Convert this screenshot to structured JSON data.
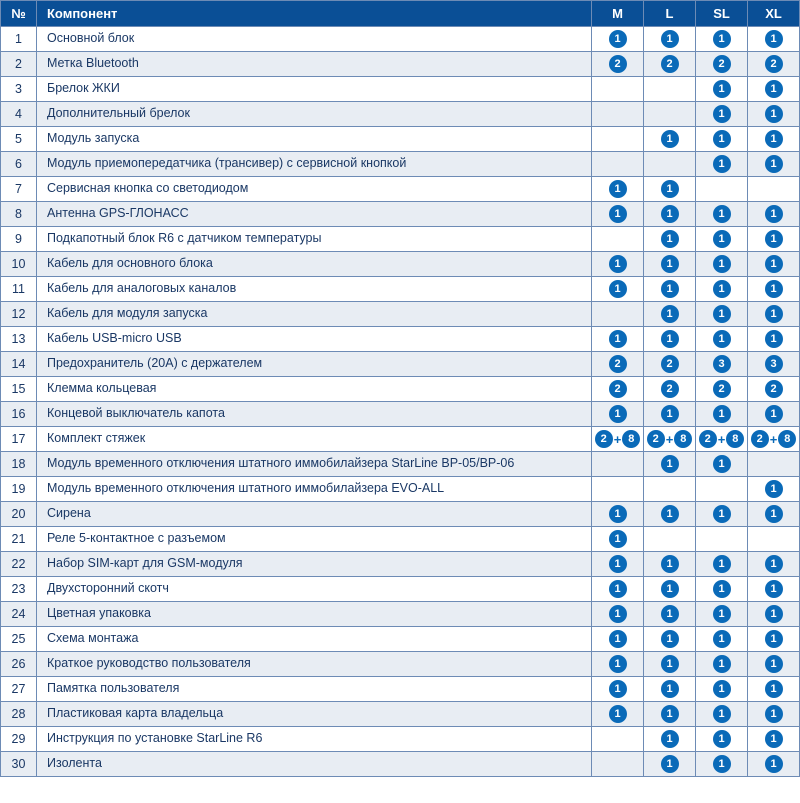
{
  "header": {
    "num": "№",
    "component": "Компонент",
    "cols": [
      "M",
      "L",
      "SL",
      "XL"
    ]
  },
  "colors": {
    "header_bg": "#0a4f96",
    "header_fg": "#ffffff",
    "border": "#6d8bb5",
    "text": "#1a3865",
    "badge_bg": "#0a6ab8",
    "row_even": "#e8edf3",
    "row_odd": "#ffffff"
  },
  "rows": [
    {
      "n": "1",
      "c": "Основной блок",
      "v": [
        "1",
        "1",
        "1",
        "1"
      ]
    },
    {
      "n": "2",
      "c": "Метка Bluetooth",
      "v": [
        "2",
        "2",
        "2",
        "2"
      ]
    },
    {
      "n": "3",
      "c": "Брелок ЖКИ",
      "v": [
        "",
        "",
        "1",
        "1"
      ]
    },
    {
      "n": "4",
      "c": "Дополнительный брелок",
      "v": [
        "",
        "",
        "1",
        "1"
      ]
    },
    {
      "n": "5",
      "c": "Модуль запуска",
      "v": [
        "",
        "1",
        "1",
        "1"
      ]
    },
    {
      "n": "6",
      "c": "Модуль приемопередатчика (трансивер) с сервисной кнопкой",
      "v": [
        "",
        "",
        "1",
        "1"
      ]
    },
    {
      "n": "7",
      "c": "Сервисная кнопка со светодиодом",
      "v": [
        "1",
        "1",
        "",
        ""
      ]
    },
    {
      "n": "8",
      "c": "Антенна GPS-ГЛОНАСС",
      "v": [
        "1",
        "1",
        "1",
        "1"
      ]
    },
    {
      "n": "9",
      "c": "Подкапотный блок R6 с датчиком температуры",
      "v": [
        "",
        "1",
        "1",
        "1"
      ]
    },
    {
      "n": "10",
      "c": "Кабель для основного блока",
      "v": [
        "1",
        "1",
        "1",
        "1"
      ]
    },
    {
      "n": "11",
      "c": "Кабель для аналоговых каналов",
      "v": [
        "1",
        "1",
        "1",
        "1"
      ]
    },
    {
      "n": "12",
      "c": "Кабель для модуля запуска",
      "v": [
        "",
        "1",
        "1",
        "1"
      ]
    },
    {
      "n": "13",
      "c": "Кабель USB-micro USB",
      "v": [
        "1",
        "1",
        "1",
        "1"
      ]
    },
    {
      "n": "14",
      "c": "Предохранитель (20А) с держателем",
      "v": [
        "2",
        "2",
        "3",
        "3"
      ]
    },
    {
      "n": "15",
      "c": "Клемма кольцевая",
      "v": [
        "2",
        "2",
        "2",
        "2"
      ]
    },
    {
      "n": "16",
      "c": "Концевой выключатель капота",
      "v": [
        "1",
        "1",
        "1",
        "1"
      ]
    },
    {
      "n": "17",
      "c": "Комплект стяжек",
      "v": [
        "2+8",
        "2+8",
        "2+8",
        "2+8"
      ]
    },
    {
      "n": "18",
      "c": "Модуль временного отключения штатного иммобилайзера StarLine BP-05/BP-06",
      "v": [
        "",
        "1",
        "1",
        ""
      ]
    },
    {
      "n": "19",
      "c": "Модуль временного отключения штатного иммобилайзера EVO-ALL",
      "v": [
        "",
        "",
        "",
        "1"
      ]
    },
    {
      "n": "20",
      "c": "Сирена",
      "v": [
        "1",
        "1",
        "1",
        "1"
      ]
    },
    {
      "n": "21",
      "c": "Реле 5-контактное с разъемом",
      "v": [
        "1",
        "",
        "",
        ""
      ]
    },
    {
      "n": "22",
      "c": "Набор SIM-карт для GSM-модуля",
      "v": [
        "1",
        "1",
        "1",
        "1"
      ]
    },
    {
      "n": "23",
      "c": "Двухсторонний скотч",
      "v": [
        "1",
        "1",
        "1",
        "1"
      ]
    },
    {
      "n": "24",
      "c": "Цветная упаковка",
      "v": [
        "1",
        "1",
        "1",
        "1"
      ]
    },
    {
      "n": "25",
      "c": "Схема монтажа",
      "v": [
        "1",
        "1",
        "1",
        "1"
      ]
    },
    {
      "n": "26",
      "c": "Краткое руководство пользователя",
      "v": [
        "1",
        "1",
        "1",
        "1"
      ]
    },
    {
      "n": "27",
      "c": "Памятка пользователя",
      "v": [
        "1",
        "1",
        "1",
        "1"
      ]
    },
    {
      "n": "28",
      "c": "Пластиковая карта владельца",
      "v": [
        "1",
        "1",
        "1",
        "1"
      ]
    },
    {
      "n": "29",
      "c": "Инструкция по установке StarLine R6",
      "v": [
        "",
        "1",
        "1",
        "1"
      ]
    },
    {
      "n": "30",
      "c": "Изолента",
      "v": [
        "",
        "1",
        "1",
        "1"
      ]
    }
  ]
}
